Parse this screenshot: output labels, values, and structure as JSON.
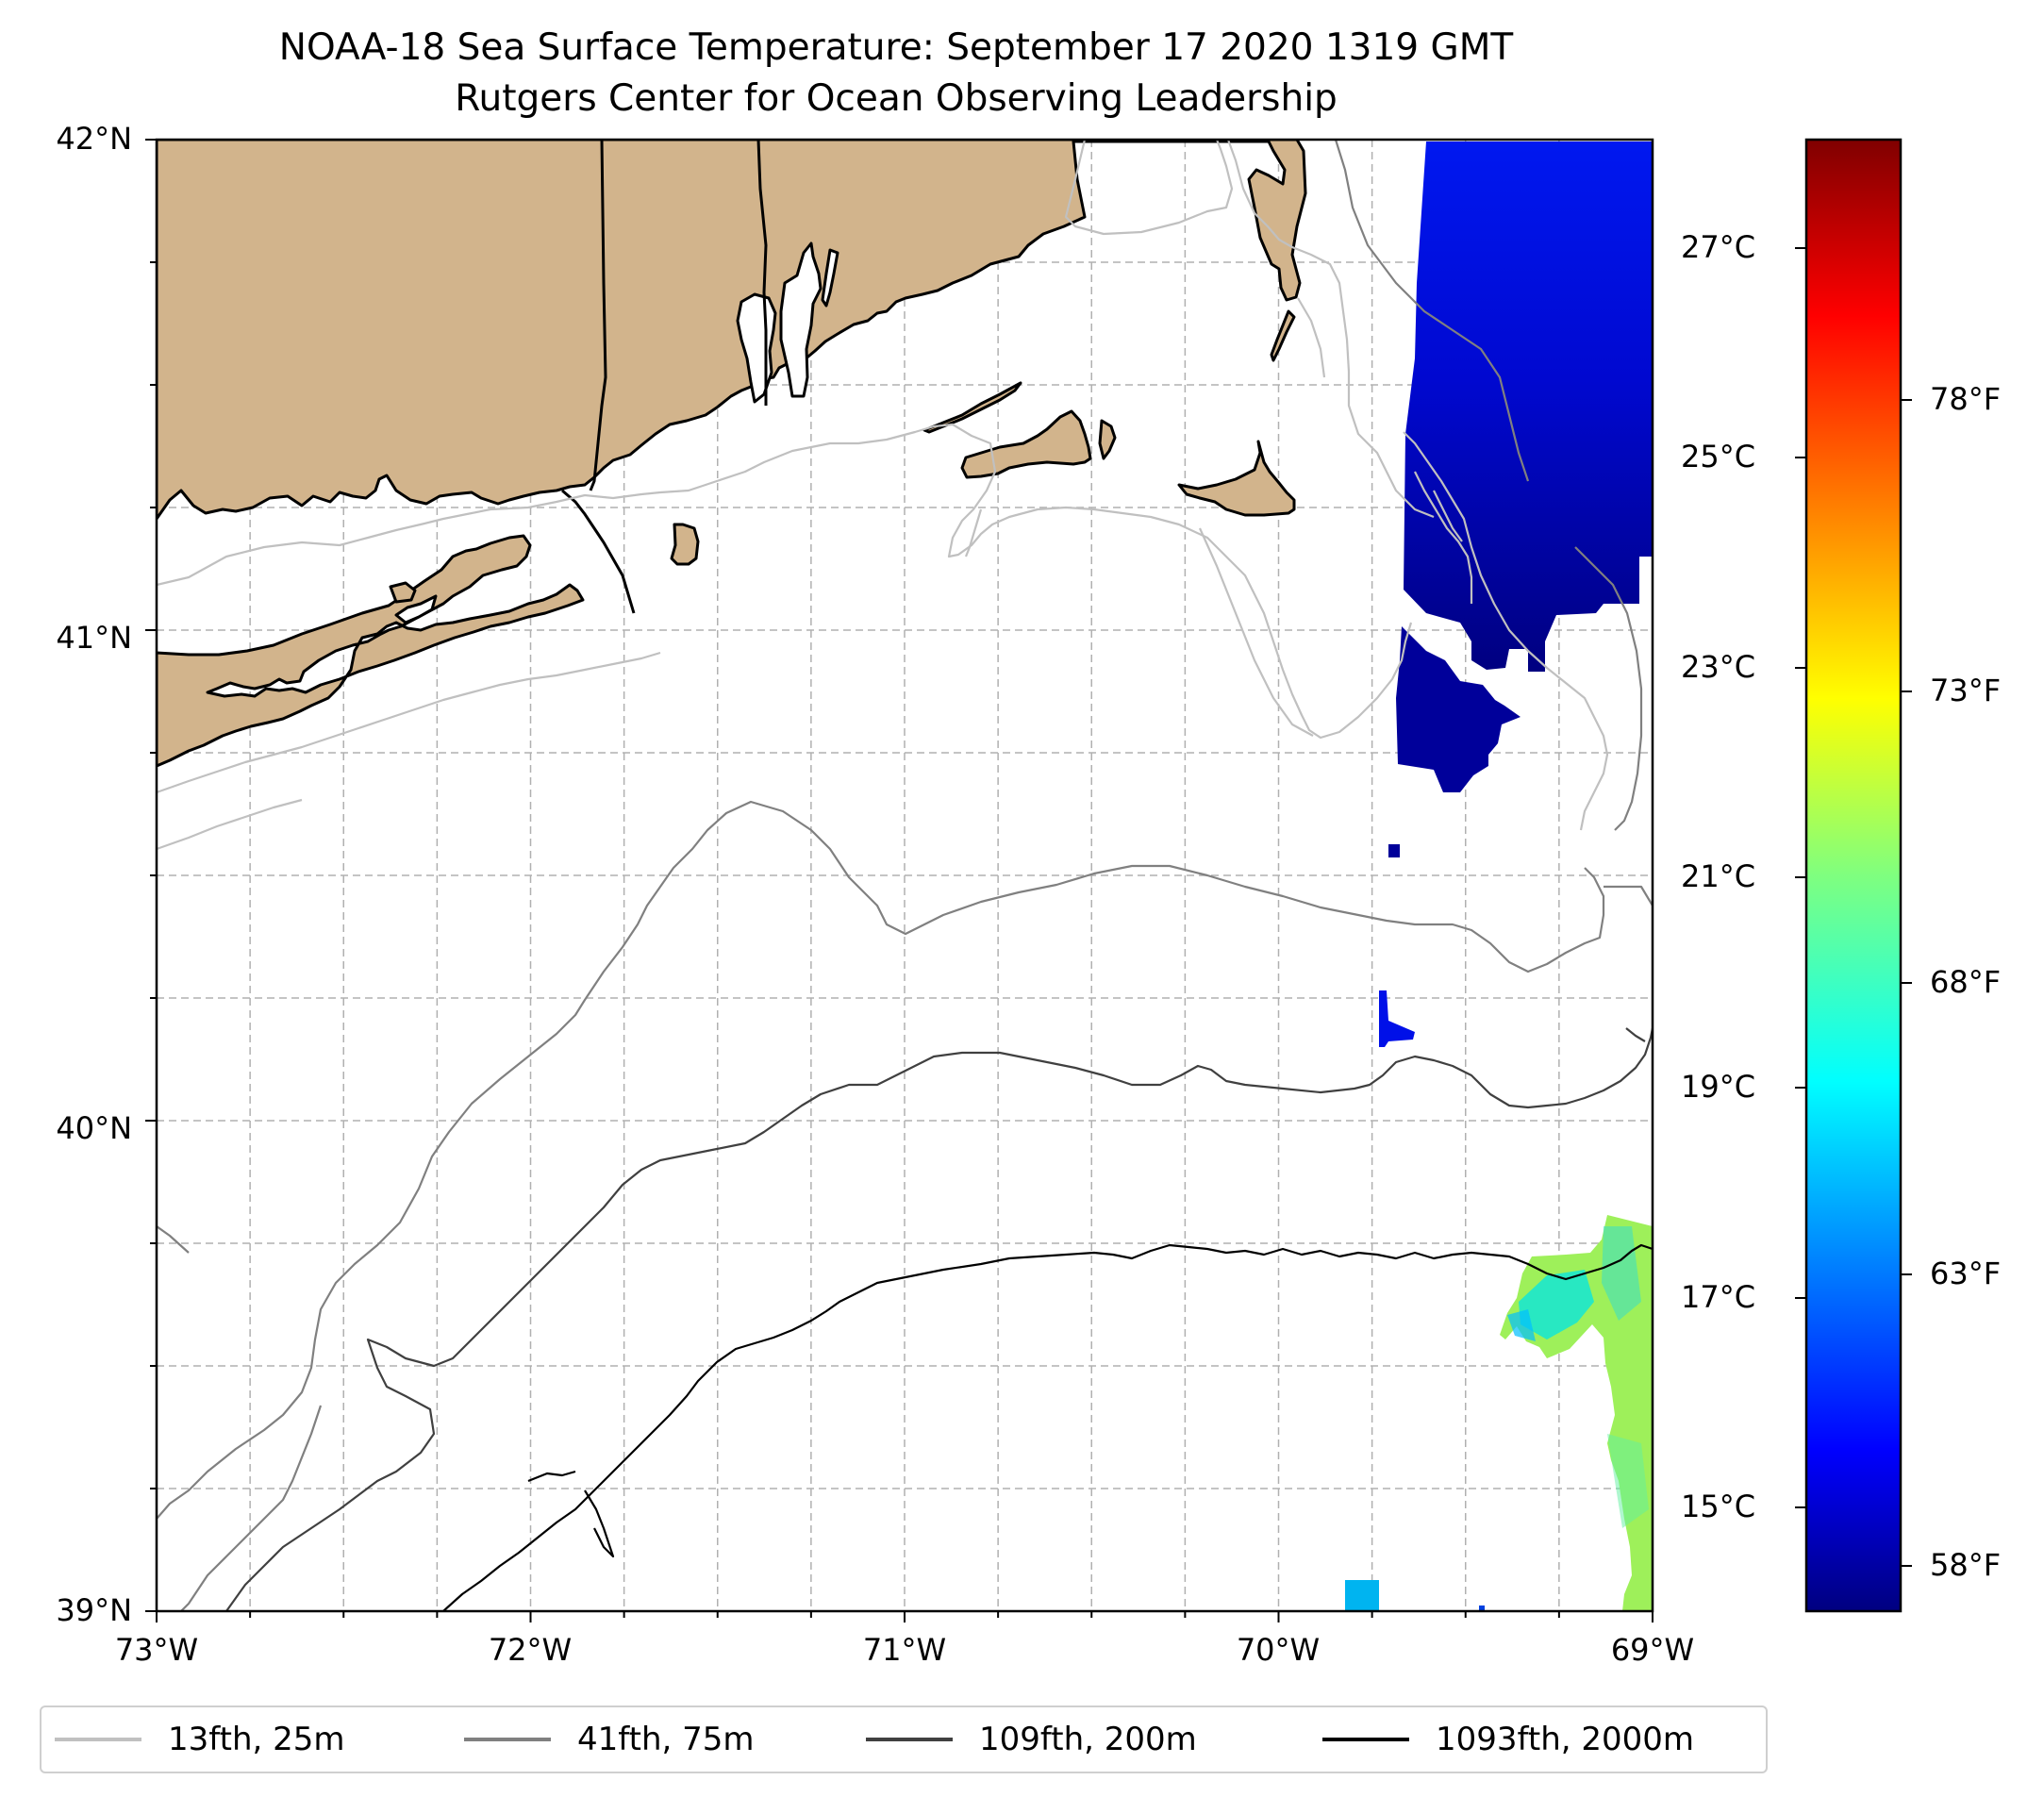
{
  "title": {
    "line1": "NOAA-18 Sea Surface Temperature: September 17 2020 1319 GMT",
    "line2": "Rutgers Center for Ocean Observing Leadership"
  },
  "map": {
    "lat_ticks": [
      "42°N",
      "41°N",
      "40°N",
      "39°N"
    ],
    "lon_ticks": [
      "73°W",
      "72°W",
      "71°W",
      "70°W",
      "69°W"
    ],
    "lat_range": [
      39,
      42
    ],
    "lon_range": [
      -73,
      -69
    ],
    "land_color": "#d2b48c",
    "gridlines": true
  },
  "colorbar": {
    "colormap": "jet",
    "celsius_ticks": [
      "27°C",
      "25°C",
      "23°C",
      "21°C",
      "19°C",
      "17°C",
      "15°C"
    ],
    "fahrenheit_ticks": [
      "78°F",
      "73°F",
      "68°F",
      "63°F",
      "58°F"
    ]
  },
  "legend": [
    {
      "label": "13fth, 25m",
      "color": "#c0c0c0"
    },
    {
      "label": "41fth, 75m",
      "color": "#808080"
    },
    {
      "label": "109fth, 200m",
      "color": "#404040"
    },
    {
      "label": "1093fth, 2000m",
      "color": "#000000"
    }
  ]
}
